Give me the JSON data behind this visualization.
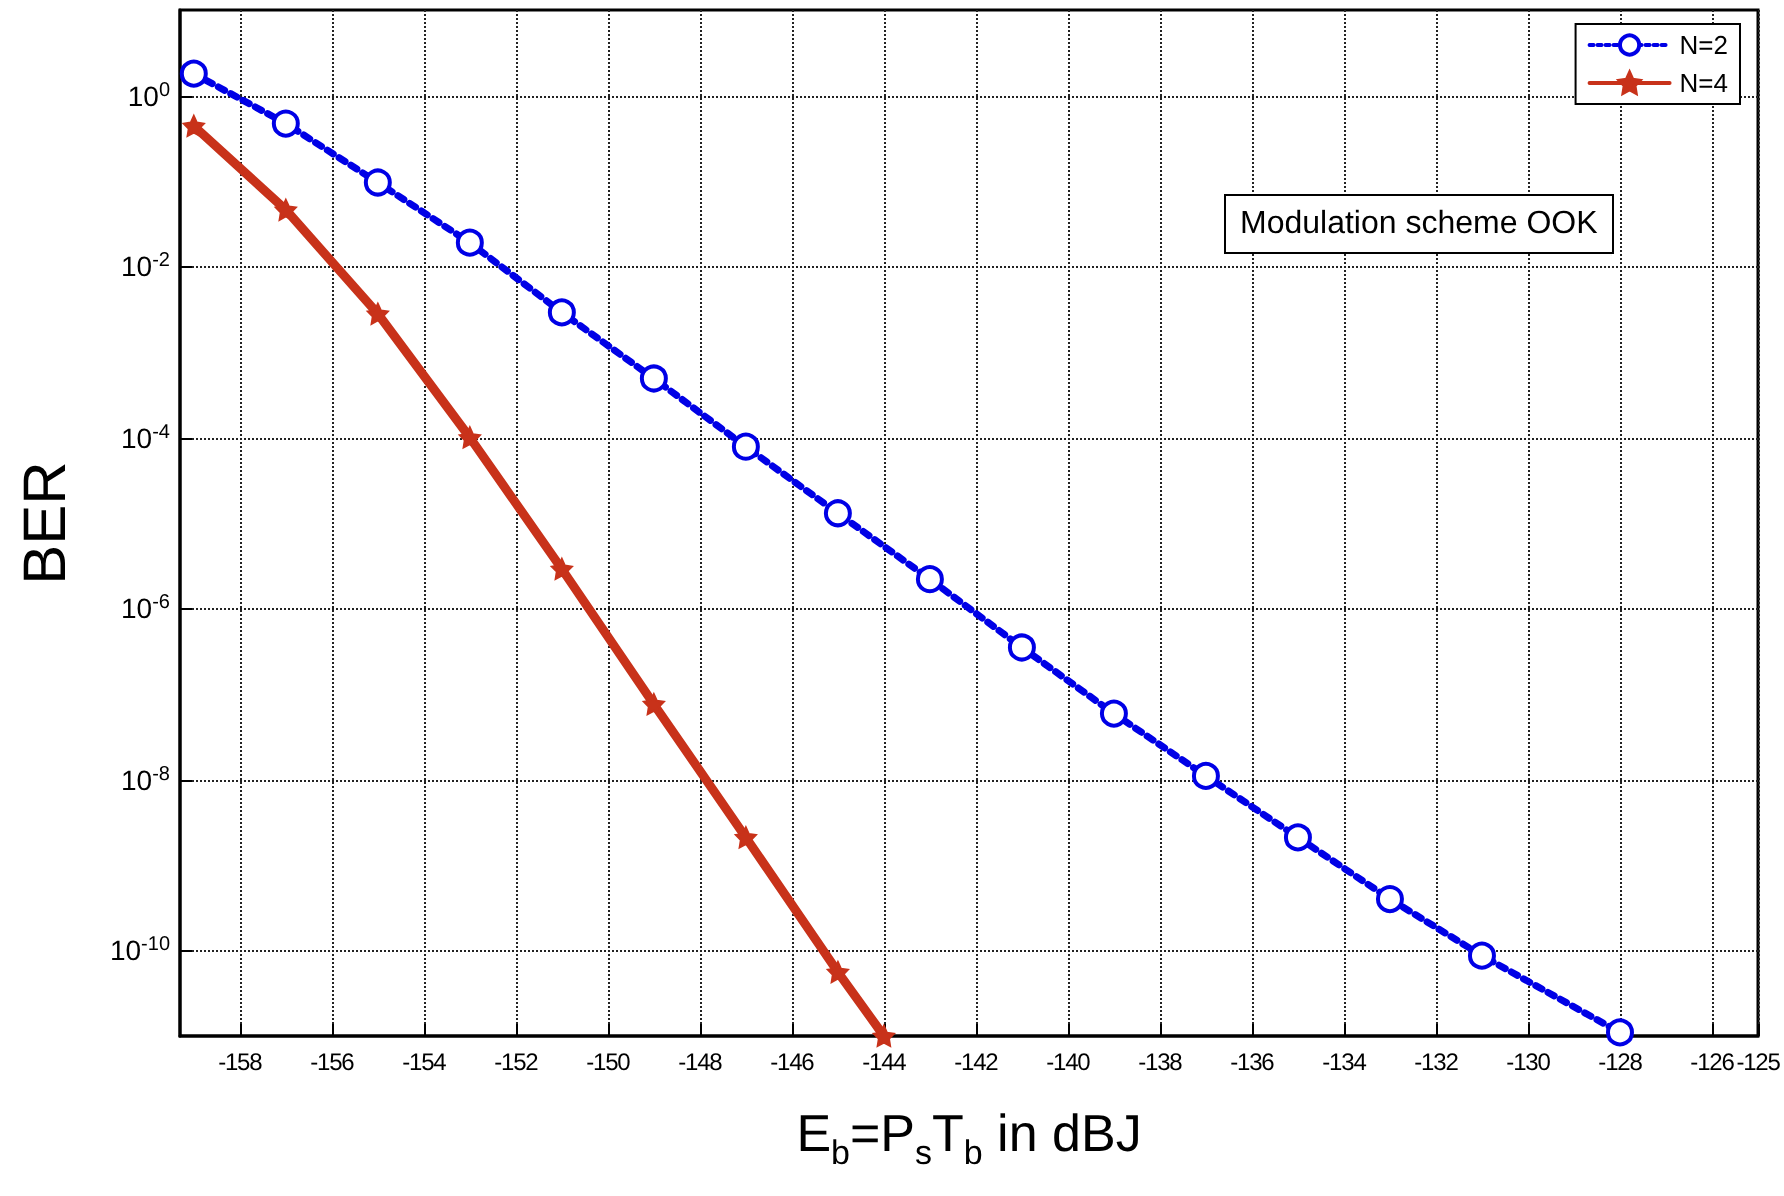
{
  "chart_data": {
    "type": "line",
    "xlabel": "E$_{b}$=P$_{s}$T$_{b}$ in dBJ",
    "ylabel": "BER",
    "annotations": [
      "Modulation scheme OOK"
    ],
    "log": "y",
    "grid": true,
    "legend": "top right",
    "xlim": [
      -159.3,
      -125
    ],
    "xticks": [
      -158,
      -156,
      -154,
      -152,
      -150,
      -148,
      -146,
      -144,
      -142,
      -140,
      -138,
      -136,
      -134,
      -132,
      -130,
      -128,
      -126,
      -125
    ],
    "ylim": [
      1e-11,
      10
    ],
    "yticks": [
      {
        "value": 1,
        "label": "10$^{0}$"
      },
      {
        "value": 0.01,
        "label": "10$^{-2}$"
      },
      {
        "value": 0.0001,
        "label": "10$^{-4}$"
      },
      {
        "value": 1e-06,
        "label": "10$^{-6}$"
      },
      {
        "value": 1e-08,
        "label": "10$^{-8}$"
      },
      {
        "value": 1e-10,
        "label": "10$^{-10}$"
      }
    ],
    "series": [
      {
        "name": "N=2",
        "color": "#0000e6",
        "marker": "circle",
        "line_style": "dotted",
        "x": [
          -159,
          -157,
          -155,
          -153,
          -151,
          -149,
          -147,
          -145,
          -143,
          -141,
          -139,
          -137,
          -135,
          -133,
          -131,
          -128
        ],
        "values": [
          1.8,
          0.47,
          0.096,
          0.019,
          0.0029,
          0.00049,
          7.8e-05,
          1.3e-05,
          2.2e-06,
          3.5e-07,
          5.9e-08,
          1.1e-08,
          2.1e-09,
          4e-10,
          8.7e-11,
          1.1e-11
        ]
      },
      {
        "name": "N=4",
        "color": "#c8321a",
        "marker": "star",
        "line_style": "solid",
        "x": [
          -159,
          -157,
          -155,
          -153,
          -151,
          -149,
          -147,
          -145,
          -144
        ],
        "values": [
          0.44,
          0.046,
          0.0028,
          0.0001,
          2.9e-06,
          7.6e-08,
          2.1e-09,
          5.6e-11,
          1e-11
        ]
      }
    ]
  }
}
